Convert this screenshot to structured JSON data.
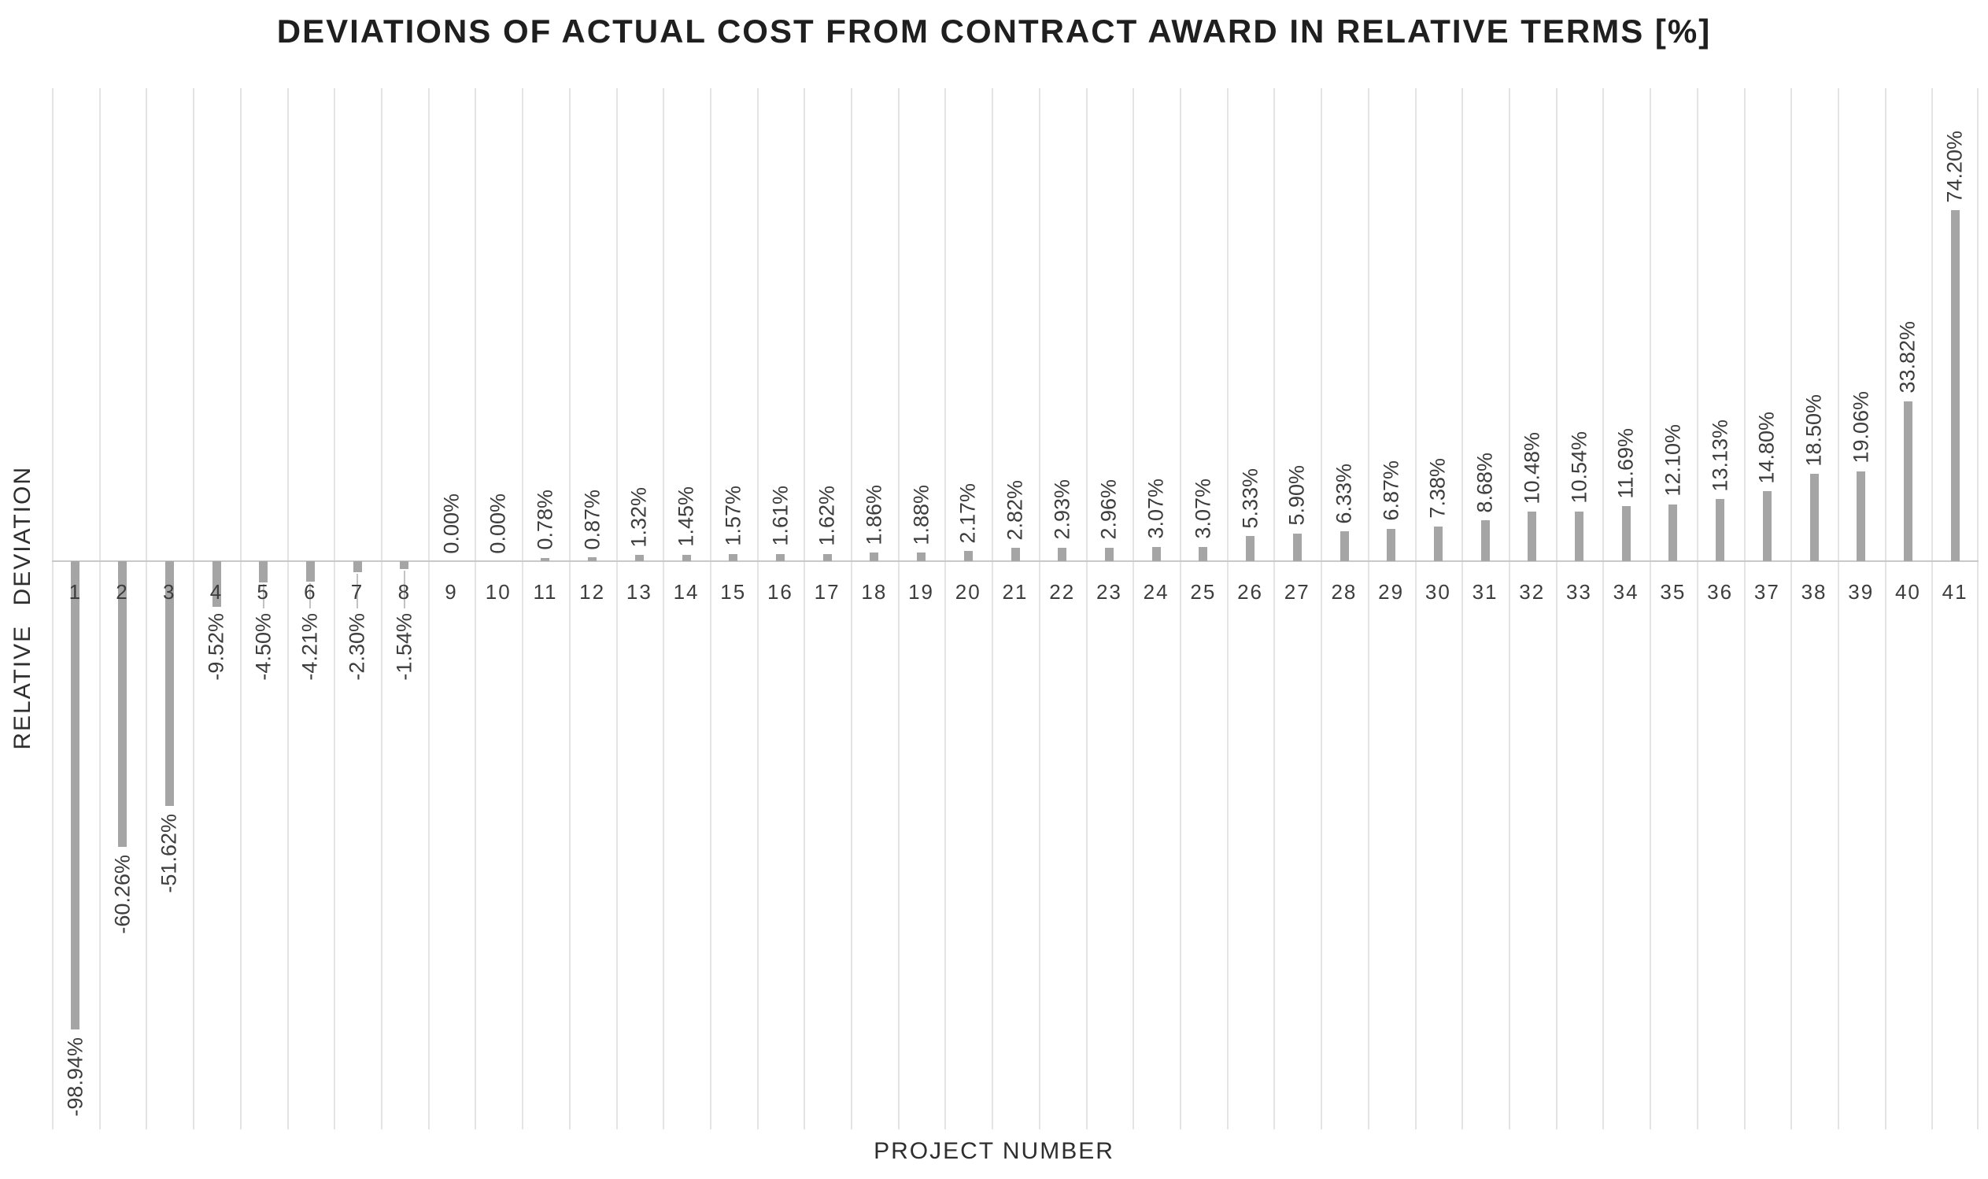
{
  "chart_data": {
    "type": "bar",
    "title": "DEVIATIONS OF ACTUAL COST FROM CONTRACT AWARD IN RELATIVE TERMS [%]",
    "xlabel": "PROJECT NUMBER",
    "ylabel": "RELATIVE DEVIATION",
    "categories": [
      "1",
      "2",
      "3",
      "4",
      "5",
      "6",
      "7",
      "8",
      "9",
      "10",
      "11",
      "12",
      "13",
      "14",
      "15",
      "16",
      "17",
      "18",
      "19",
      "20",
      "21",
      "22",
      "23",
      "24",
      "25",
      "26",
      "27",
      "28",
      "29",
      "30",
      "31",
      "32",
      "33",
      "34",
      "35",
      "36",
      "37",
      "38",
      "39",
      "40",
      "41"
    ],
    "values": [
      -98.94,
      -60.26,
      -51.62,
      -9.52,
      -4.5,
      -4.21,
      -2.3,
      -1.54,
      0.0,
      0.0,
      0.78,
      0.87,
      1.32,
      1.45,
      1.57,
      1.61,
      1.62,
      1.86,
      1.88,
      2.17,
      2.82,
      2.93,
      2.96,
      3.07,
      3.07,
      5.33,
      5.9,
      6.33,
      6.87,
      7.38,
      8.68,
      10.48,
      10.54,
      11.69,
      12.1,
      13.13,
      14.8,
      18.5,
      19.06,
      33.82,
      74.2
    ],
    "labels": [
      "-98.94%",
      "-60.26%",
      "-51.62%",
      "-9.52%",
      "-4.50%",
      "-4.21%",
      "-2.30%",
      "-1.54%",
      "0.00%",
      "0.00%",
      "0.78%",
      "0.87%",
      "1.32%",
      "1.45%",
      "1.57%",
      "1.61%",
      "1.62%",
      "1.86%",
      "1.88%",
      "2.17%",
      "2.82%",
      "2.93%",
      "2.96%",
      "3.07%",
      "3.07%",
      "5.33%",
      "5.90%",
      "6.33%",
      "6.87%",
      "7.38%",
      "8.68%",
      "10.48%",
      "10.54%",
      "11.69%",
      "12.10%",
      "13.13%",
      "14.80%",
      "18.50%",
      "19.06%",
      "33.82%",
      "74.20%"
    ],
    "ylim": [
      -120,
      100
    ],
    "y_tick_labels_visible": false,
    "grid": "vertical-category-boundaries",
    "legend_position": "none",
    "bar_color": "#a5a5a5",
    "gridline_color": "#e4e4e4",
    "zero_line_color": "#c9c9c9",
    "leader_line_color": "#c2c2c2",
    "label_color": "#3d3d3d",
    "title_color": "#1f1f1f"
  }
}
